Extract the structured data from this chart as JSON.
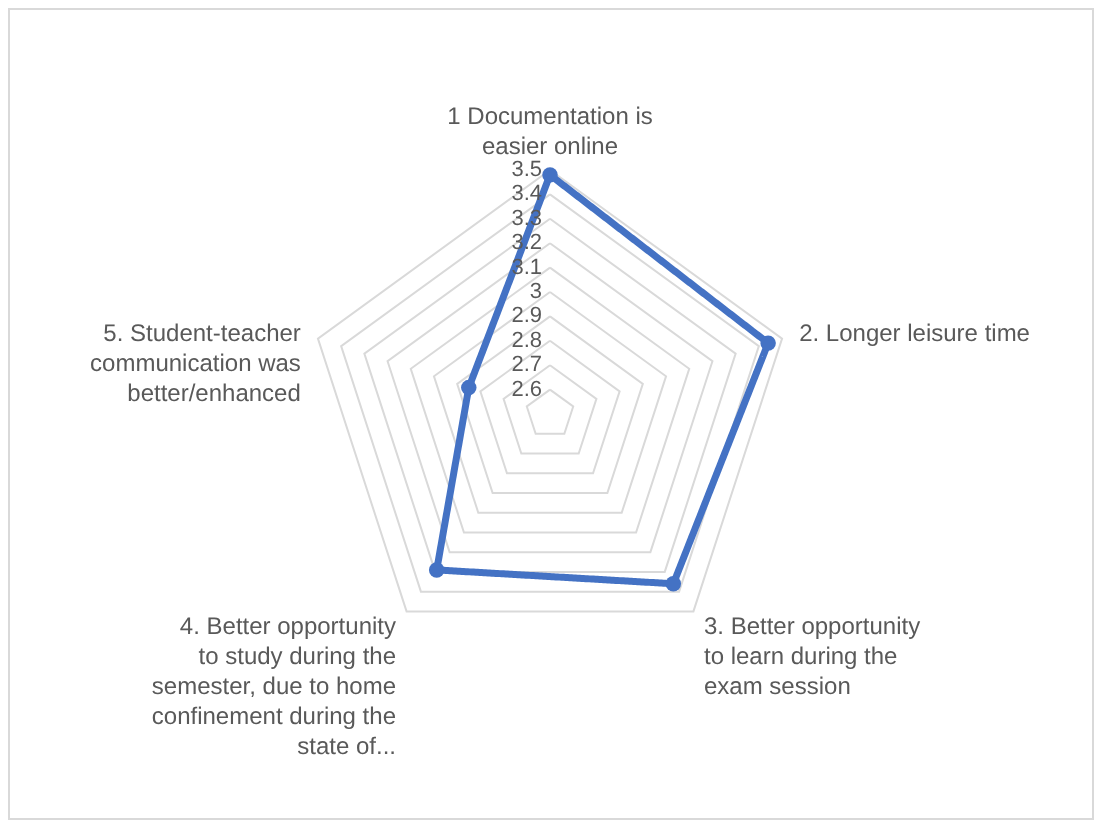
{
  "chart_data": {
    "type": "radar",
    "categories": [
      "1 Documentation is easier online",
      "2. Longer leisure time",
      "3. Better opportunity to learn during the exam session",
      "4. Better opportunity to study during the semester, due to home confinement during the state of...",
      "5. Student-teacher communication was better/enhanced"
    ],
    "series": [
      {
        "color": "#4472c4",
        "values": [
          3.48,
          3.44,
          3.36,
          3.29,
          2.85
        ]
      }
    ],
    "ylim": [
      2.5,
      3.5
    ],
    "yticks": [
      2.6,
      2.7,
      2.8,
      2.9,
      3,
      3.1,
      3.2,
      3.3,
      3.4,
      3.5
    ],
    "grid": true,
    "marker": "circle"
  }
}
